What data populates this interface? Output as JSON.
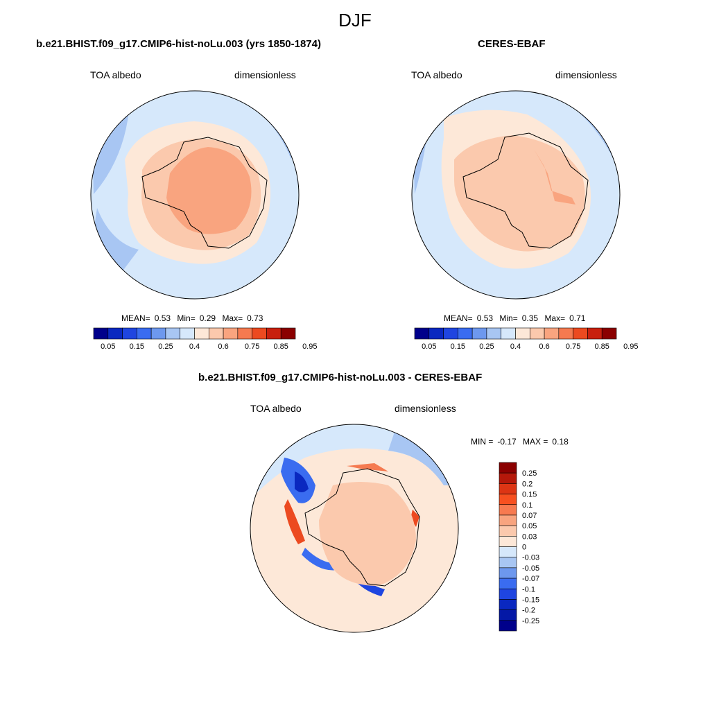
{
  "title": "DJF",
  "panels": [
    {
      "title": "b.e21.BHIST.f09_g17.CMIP6-hist-noLu.003 (yrs 1850-1874)",
      "variable": "TOA albedo",
      "units": "dimensionless",
      "stats": {
        "mean_label": "MEAN=",
        "mean": "0.53",
        "min_label": "Min=",
        "min": "0.29",
        "max_label": "Max=",
        "max": "0.73"
      }
    },
    {
      "title": "CERES-EBAF",
      "variable": "TOA albedo",
      "units": "dimensionless",
      "stats": {
        "mean_label": "MEAN=",
        "mean": "0.53",
        "min_label": "Min=",
        "min": "0.35",
        "max_label": "Max=",
        "max": "0.71"
      }
    },
    {
      "title": "b.e21.BHIST.f09_g17.CMIP6-hist-noLu.003 - CERES-EBAF",
      "variable": "TOA albedo",
      "units": "dimensionless",
      "stats": {
        "min_label": "MIN =",
        "min": "-0.17",
        "max_label": "MAX =",
        "max": "0.18"
      }
    }
  ],
  "colorbar_abs": {
    "colors": [
      "#00008b",
      "#0a28c0",
      "#1f45e0",
      "#3a6cf0",
      "#6d98ee",
      "#a8c6f3",
      "#d6e8fb",
      "#fde8d8",
      "#fbc9ad",
      "#f9a47f",
      "#f57a50",
      "#ec4a20",
      "#c8200e",
      "#8b0000"
    ],
    "tick_labels": [
      "0.05",
      "0.15",
      "0.25",
      "0.4",
      "0.6",
      "0.75",
      "0.85",
      "0.95"
    ]
  },
  "colorbar_diff": {
    "colors": [
      "#8b0000",
      "#b5180a",
      "#dd3514",
      "#f75020",
      "#f77a50",
      "#f8a47f",
      "#fbc9ad",
      "#fde8d8",
      "#d6e8fb",
      "#a8c6f3",
      "#6d98ee",
      "#3a6cf0",
      "#1f45e0",
      "#0a28c0",
      "#0418a6",
      "#00008b"
    ],
    "tick_labels": [
      "0.25",
      "0.2",
      "0.15",
      "0.1",
      "0.07",
      "0.05",
      "0.03",
      "0",
      "-0.03",
      "-0.05",
      "-0.07",
      "-0.1",
      "-0.15",
      "-0.2",
      "-0.25"
    ]
  }
}
